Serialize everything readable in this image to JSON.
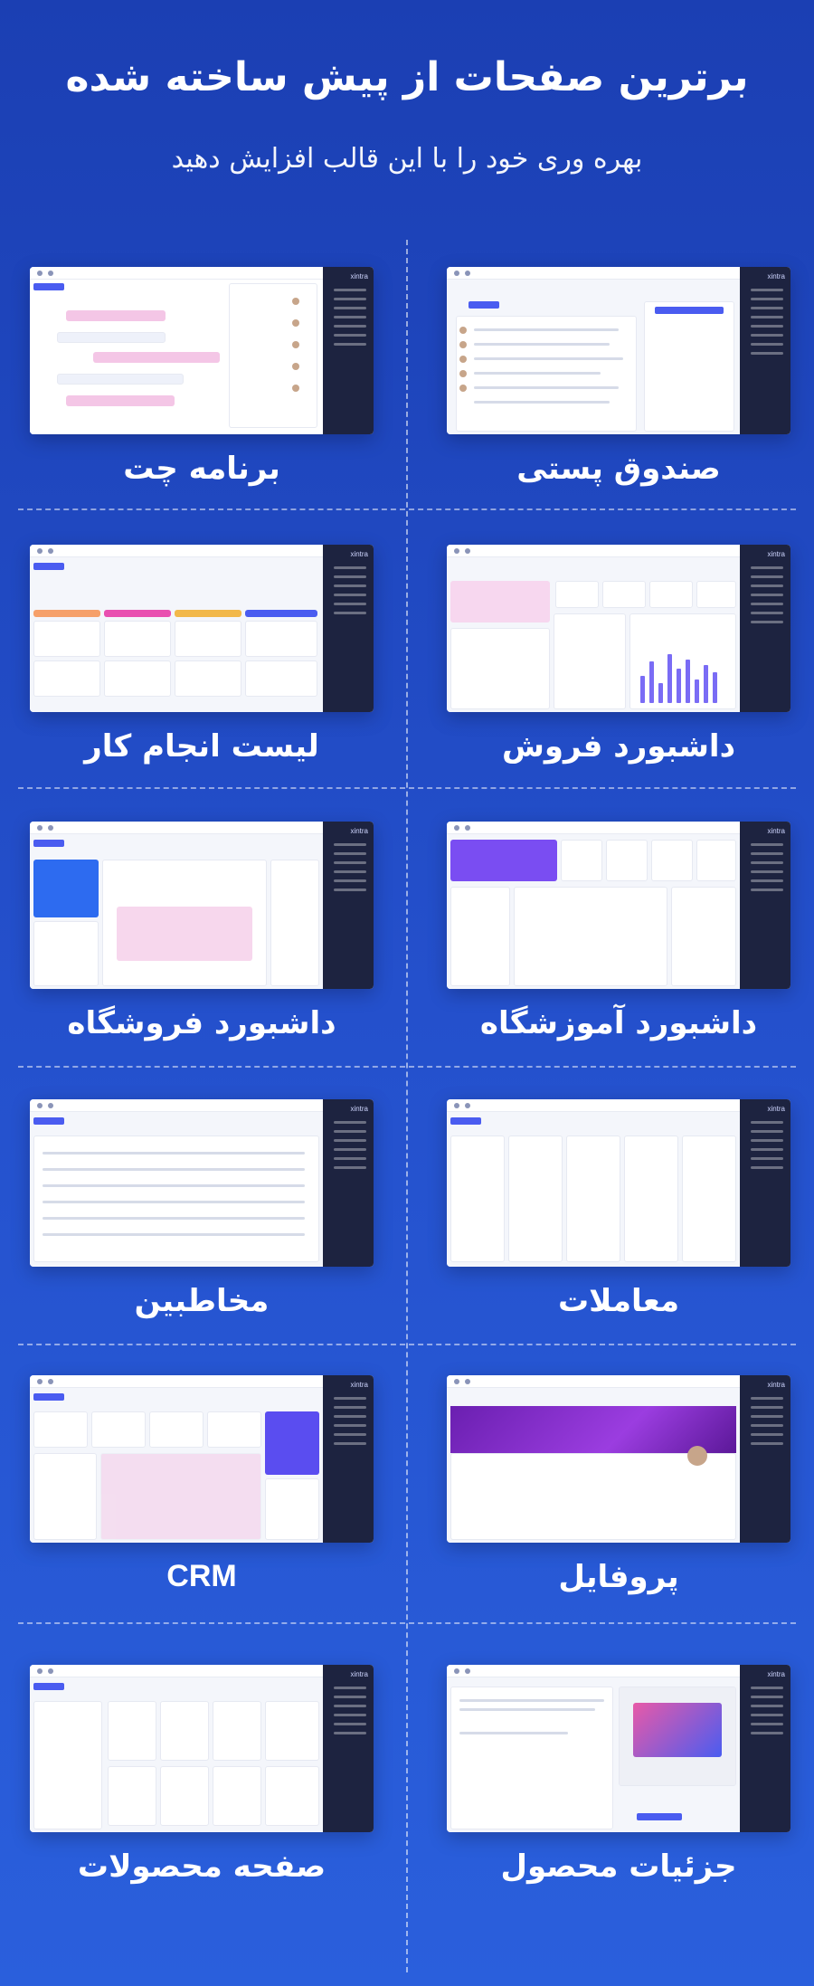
{
  "header": {
    "title": "برترین صفحات از پیش ساخته شده",
    "subtitle": "بهره وری خود را با این قالب افزایش دهید"
  },
  "brand": {
    "logo": "xintra"
  },
  "colors": {
    "background": "#2450cc",
    "accent": "#4a5cf0",
    "sidebar": "#1d2340"
  },
  "cards": [
    {
      "label": "صندوق پستی"
    },
    {
      "label": "برنامه چت"
    },
    {
      "label": "داشبورد فروش"
    },
    {
      "label": "لیست انجام کار"
    },
    {
      "label": "داشبورد آموزشگاه"
    },
    {
      "label": "داشبورد فروشگاه"
    },
    {
      "label": "معاملات"
    },
    {
      "label": "مخاطبین"
    },
    {
      "label": "پروفایل"
    },
    {
      "label": "CRM"
    },
    {
      "label": "جزئیات محصول"
    },
    {
      "label": "صفحه محصولات"
    }
  ]
}
